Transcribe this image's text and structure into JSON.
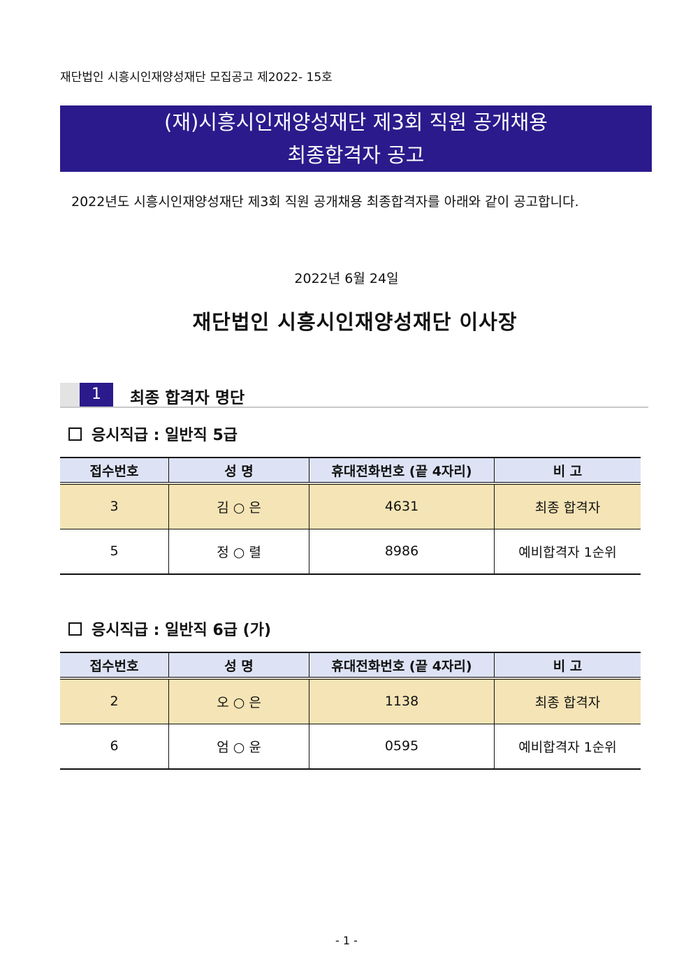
{
  "doc_number": "재단법인 시흥시인재양성재단 모집공고 제2022- 15호",
  "banner": {
    "line1": "(재)시흥시인재양성재단 제3회 직원 공개채용",
    "line2": "최종합격자 공고"
  },
  "intro": "2022년도 시흥시인재양성재단 제3회 직원 공개채용 최종합격자를 아래와 같이 공고합니다.",
  "date": "2022년 6월 24일",
  "issuer": "재단법인 시흥시인재양성재단 이사장",
  "section": {
    "number": "1",
    "title": "최종 합격자 명단"
  },
  "headers": [
    "접수번호",
    "성 명",
    "휴대전화번호 (끝 4자리)",
    "비 고"
  ],
  "groups": [
    {
      "title": "응시직급 : 일반직 5급",
      "rows": [
        [
          "3",
          "김 ○ 은",
          "4631",
          "최종 합격자"
        ],
        [
          "5",
          "정 ○ 렬",
          "8986",
          "예비합격자 1순위"
        ]
      ]
    },
    {
      "title": "응시직급 : 일반직 6급 (가)",
      "rows": [
        [
          "2",
          "오 ○ 은",
          "1138",
          "최종 합격자"
        ],
        [
          "6",
          "엄 ○ 윤",
          "0595",
          "예비합격자 1순위"
        ]
      ]
    }
  ],
  "page_number": "- 1 -",
  "colors": {
    "banner": "#2b1a8c",
    "header_bg": "#dde3f5",
    "highlight_row": "#f5e4b5"
  }
}
